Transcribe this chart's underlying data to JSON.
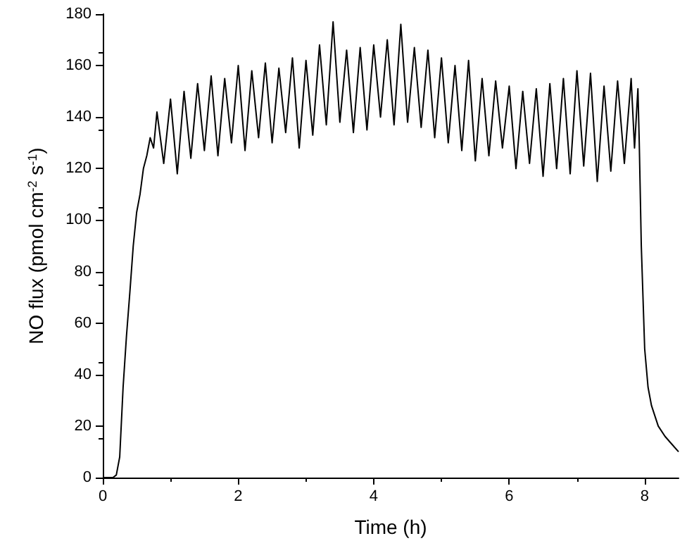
{
  "chart_data": {
    "type": "line",
    "xlabel": "Time (h)",
    "ylabel": "NO flux (pmol cm$^{-2}$ s$^{-1}$)",
    "xlim": [
      0,
      8.5
    ],
    "xticks": [
      0,
      2,
      4,
      6,
      8
    ],
    "ylim": [
      0,
      180
    ],
    "yticks": [
      0,
      20,
      40,
      60,
      80,
      100,
      120,
      140,
      160,
      180
    ],
    "series": [
      {
        "color": "#000000",
        "x": [
          0,
          0.15,
          0.2,
          0.25,
          0.3,
          0.35,
          0.4,
          0.45,
          0.5,
          0.55,
          0.6,
          0.65,
          0.7,
          0.75,
          0.8,
          0.9,
          1.0,
          1.1,
          1.2,
          1.3,
          1.4,
          1.5,
          1.6,
          1.7,
          1.8,
          1.9,
          2.0,
          2.1,
          2.2,
          2.3,
          2.4,
          2.5,
          2.6,
          2.7,
          2.8,
          2.9,
          3.0,
          3.1,
          3.2,
          3.3,
          3.4,
          3.5,
          3.6,
          3.7,
          3.8,
          3.9,
          4.0,
          4.1,
          4.2,
          4.3,
          4.4,
          4.5,
          4.6,
          4.7,
          4.8,
          4.9,
          5.0,
          5.1,
          5.2,
          5.3,
          5.4,
          5.5,
          5.6,
          5.7,
          5.8,
          5.9,
          6.0,
          6.1,
          6.2,
          6.3,
          6.4,
          6.5,
          6.6,
          6.7,
          6.8,
          6.9,
          7.0,
          7.1,
          7.2,
          7.3,
          7.4,
          7.5,
          7.6,
          7.7,
          7.8,
          7.85,
          7.9,
          7.92,
          7.95,
          8.0,
          8.05,
          8.1,
          8.2,
          8.3,
          8.4,
          8.5
        ],
        "values": [
          0,
          0,
          1,
          8,
          35,
          55,
          72,
          90,
          103,
          110,
          120,
          125,
          132,
          128,
          142,
          122,
          147,
          118,
          150,
          124,
          153,
          127,
          156,
          125,
          155,
          130,
          160,
          127,
          158,
          132,
          161,
          130,
          159,
          134,
          163,
          128,
          162,
          133,
          168,
          137,
          177,
          138,
          166,
          134,
          167,
          135,
          168,
          140,
          170,
          137,
          176,
          138,
          167,
          136,
          166,
          132,
          163,
          130,
          160,
          127,
          162,
          123,
          155,
          125,
          154,
          128,
          152,
          120,
          150,
          122,
          151,
          117,
          153,
          120,
          155,
          118,
          158,
          121,
          157,
          115,
          152,
          119,
          154,
          122,
          155,
          128,
          151,
          130,
          90,
          50,
          35,
          28,
          20,
          16,
          13,
          10
        ]
      }
    ]
  }
}
